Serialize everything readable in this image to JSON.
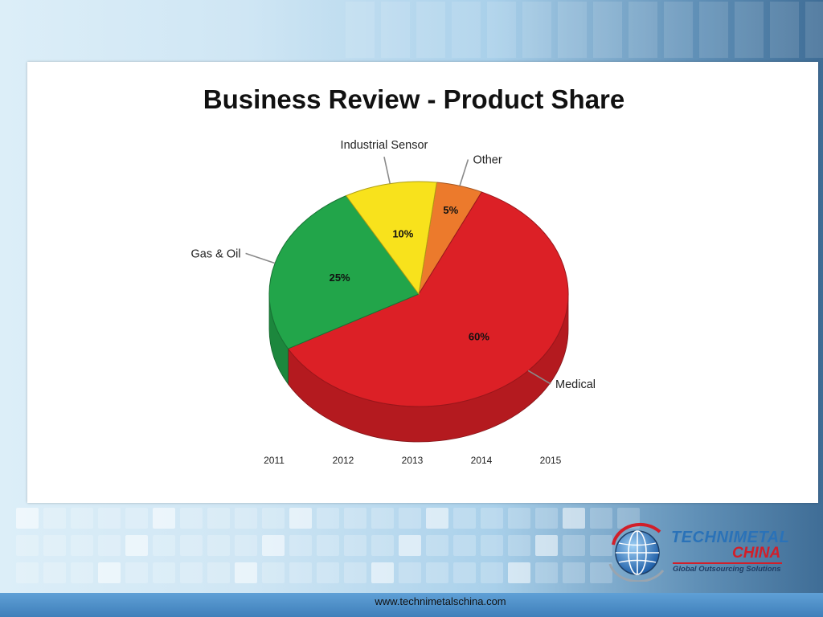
{
  "slide": {
    "title": "Business Review - Product Share",
    "footer_url": "www.technimetalschina.com"
  },
  "logo": {
    "line1": "TECHNIMETAL",
    "line2": "CHINA",
    "tagline": "Global Outsourcing Solutions"
  },
  "chart_data": {
    "type": "pie",
    "title": "",
    "slices": [
      {
        "label": "Other",
        "value": 5,
        "value_label": "5%",
        "color": "#ec7a2c"
      },
      {
        "label": "Medical",
        "value": 60,
        "value_label": "60%",
        "color": "#dc2026"
      },
      {
        "label": "Gas & Oil",
        "value": 25,
        "value_label": "25%",
        "color": "#22a54a"
      },
      {
        "label": "Industrial Sensor",
        "value": 10,
        "value_label": "10%",
        "color": "#f8e21c"
      }
    ],
    "x_tick_labels": [
      "2011",
      "2012",
      "2013",
      "2014",
      "2015"
    ],
    "style": "3d"
  }
}
